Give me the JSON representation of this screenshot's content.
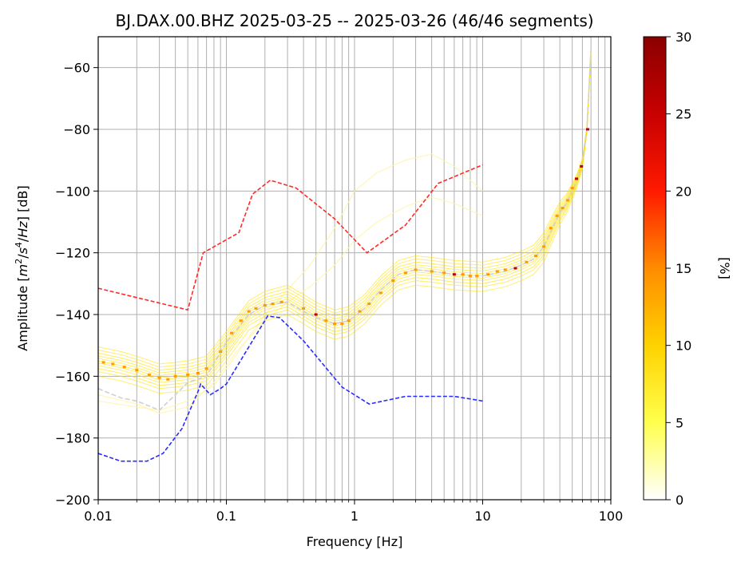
{
  "chart_data": {
    "type": "line",
    "title": "BJ.DAX.00.BHZ   2025-03-25 -- 2025-03-26  (46/46 segments)",
    "xlabel": "Frequency [Hz]",
    "ylabel_parts": {
      "prefix": "Amplitude [",
      "m": "m",
      "m_sup": "2",
      "slash1": "/",
      "s": "s",
      "s_sup": "4",
      "slash2": "/",
      "hz": "Hz",
      "suffix": "] [dB]"
    },
    "x_scale": "log",
    "xlim": [
      0.01,
      100
    ],
    "ylim": [
      -200,
      -50
    ],
    "grid": true,
    "x_ticks": [
      {
        "value": 0.01,
        "label": "0.01"
      },
      {
        "value": 0.1,
        "label": "0.1"
      },
      {
        "value": 1,
        "label": "1"
      },
      {
        "value": 10,
        "label": "10"
      },
      {
        "value": 100,
        "label": "100"
      }
    ],
    "y_ticks": [
      {
        "value": -60,
        "label": "−60"
      },
      {
        "value": -80,
        "label": "−80"
      },
      {
        "value": -100,
        "label": "−100"
      },
      {
        "value": -120,
        "label": "−120"
      },
      {
        "value": -140,
        "label": "−140"
      },
      {
        "value": -160,
        "label": "−160"
      },
      {
        "value": -180,
        "label": "−180"
      },
      {
        "value": -200,
        "label": "−200"
      }
    ],
    "noise_models": [
      {
        "color": "#ff2a2a",
        "x": [
          0.01,
          0.05,
          0.066,
          0.125,
          0.16,
          0.22,
          0.35,
          0.7,
          1.25,
          2.5,
          4.5,
          10
        ],
        "y": [
          -131.5,
          -138.5,
          -120,
          -113.5,
          -101,
          -96.5,
          -99,
          -109,
          -120,
          -111,
          -97.5,
          -91.5
        ]
      },
      {
        "color": "#2a2aff",
        "x": [
          0.01,
          0.015,
          0.024,
          0.032,
          0.045,
          0.06,
          0.063,
          0.075,
          0.09,
          0.1,
          0.16,
          0.21,
          0.26,
          0.4,
          0.8,
          1.3,
          2.5,
          3.6,
          6,
          10
        ],
        "y": [
          -185,
          -187.5,
          -187.5,
          -185,
          -177,
          -165,
          -162.5,
          -166,
          -164,
          -162.5,
          -148.5,
          -140.5,
          -141,
          -148.5,
          -163.5,
          -169,
          -166.5,
          -166.5,
          -166.5,
          -168
        ]
      }
    ],
    "psd_mode": {
      "color": "#d0d0d0",
      "x": [
        0.01,
        0.015,
        0.02,
        0.03,
        0.04,
        0.05,
        0.07,
        0.1,
        0.15,
        0.2,
        0.3,
        0.4,
        0.5,
        0.7,
        0.9,
        1.2,
        1.6,
        2.2,
        3,
        4,
        6,
        10,
        15,
        20,
        25,
        30,
        35,
        40,
        45,
        50,
        55,
        60,
        65,
        70
      ],
      "y": [
        -164,
        -167,
        -168,
        -171,
        -166,
        -162,
        -160,
        -149,
        -140,
        -137,
        -136,
        -139,
        -141,
        -143,
        -142,
        -138,
        -132,
        -127,
        -125.5,
        -126,
        -127,
        -127.5,
        -126,
        -124,
        -122,
        -118,
        -112,
        -107,
        -104,
        -100,
        -96,
        -90,
        -80,
        -54
      ]
    },
    "psd_traces": {
      "color": "#ffe000",
      "base_x": [
        0.01,
        0.015,
        0.02,
        0.03,
        0.04,
        0.05,
        0.07,
        0.1,
        0.15,
        0.2,
        0.3,
        0.4,
        0.5,
        0.7,
        0.9,
        1.2,
        1.6,
        2.2,
        3,
        4,
        6,
        10,
        15,
        20,
        25,
        30,
        35,
        40,
        45,
        50,
        55,
        60,
        65,
        70
      ],
      "base_y": [
        -155,
        -156.5,
        -158,
        -160.5,
        -160,
        -159.5,
        -158,
        -150,
        -140,
        -137,
        -135,
        -138,
        -140.5,
        -143,
        -142,
        -138,
        -132,
        -127,
        -125.5,
        -126,
        -127,
        -127.5,
        -126,
        -124,
        -122,
        -118,
        -112,
        -107,
        -104,
        -100,
        -96,
        -91,
        -80,
        -55
      ],
      "offsets": [
        -5,
        -3.5,
        -2.5,
        -1.5,
        -0.7,
        0,
        0.8,
        1.6,
        2.5,
        3.5,
        4.5
      ]
    },
    "outlier_traces": {
      "color": "#fff4a8",
      "x": [
        0.01,
        0.02,
        0.03,
        0.05,
        0.08,
        0.12,
        0.2,
        0.3,
        0.45,
        0.7,
        1,
        1.5,
        2.5,
        4,
        6,
        10
      ],
      "y": [
        [
          -168,
          -170,
          -171,
          -168,
          -163,
          -153,
          -140,
          -132,
          -124,
          -112,
          -100,
          -94,
          -90,
          -88,
          -92,
          -100
        ],
        [
          -166,
          -169,
          -172,
          -170,
          -162,
          -152,
          -142,
          -136,
          -131,
          -124,
          -116,
          -110,
          -105,
          -102,
          -104,
          -108
        ]
      ]
    },
    "mode_markers": {
      "x": [
        0.011,
        0.013,
        0.016,
        0.02,
        0.025,
        0.03,
        0.035,
        0.04,
        0.05,
        0.06,
        0.07,
        0.09,
        0.11,
        0.13,
        0.15,
        0.17,
        0.2,
        0.23,
        0.27,
        0.4,
        0.5,
        0.6,
        0.7,
        0.8,
        0.9,
        1.1,
        1.3,
        1.6,
        2,
        2.5,
        3,
        4,
        5,
        6,
        7,
        8,
        9,
        11,
        13,
        15,
        18,
        22,
        26,
        30,
        34,
        38,
        42,
        46,
        50,
        54,
        59,
        66
      ],
      "y": [
        -155.5,
        -156,
        -157,
        -158,
        -159.5,
        -160.5,
        -161,
        -160,
        -159.5,
        -159,
        -157.5,
        -152,
        -146,
        -142,
        -139,
        -138,
        -137,
        -136.5,
        -136,
        -138,
        -140,
        -142,
        -143,
        -143,
        -142,
        -139,
        -136.5,
        -133,
        -129,
        -126.5,
        -125.5,
        -126,
        -126.5,
        -127,
        -127,
        -127.5,
        -127.5,
        -127,
        -126,
        -125.5,
        -125,
        -123,
        -121,
        -118,
        -112,
        -108,
        -105.5,
        -103,
        -99,
        -96,
        -92,
        -80
      ],
      "red_indices": [
        49,
        50,
        51,
        40,
        33,
        20
      ]
    },
    "colorbar": {
      "label": "[%]",
      "min": 0,
      "max": 30,
      "ticks": [
        {
          "value": 0,
          "label": "0"
        },
        {
          "value": 5,
          "label": "5"
        },
        {
          "value": 10,
          "label": "10"
        },
        {
          "value": 15,
          "label": "15"
        },
        {
          "value": 20,
          "label": "20"
        },
        {
          "value": 25,
          "label": "25"
        },
        {
          "value": 30,
          "label": "30"
        }
      ],
      "stops": [
        "#ffffff",
        "#ffff4d",
        "#ffd200",
        "#ff8c00",
        "#ff1a00",
        "#c80000",
        "#8b0000"
      ]
    }
  }
}
